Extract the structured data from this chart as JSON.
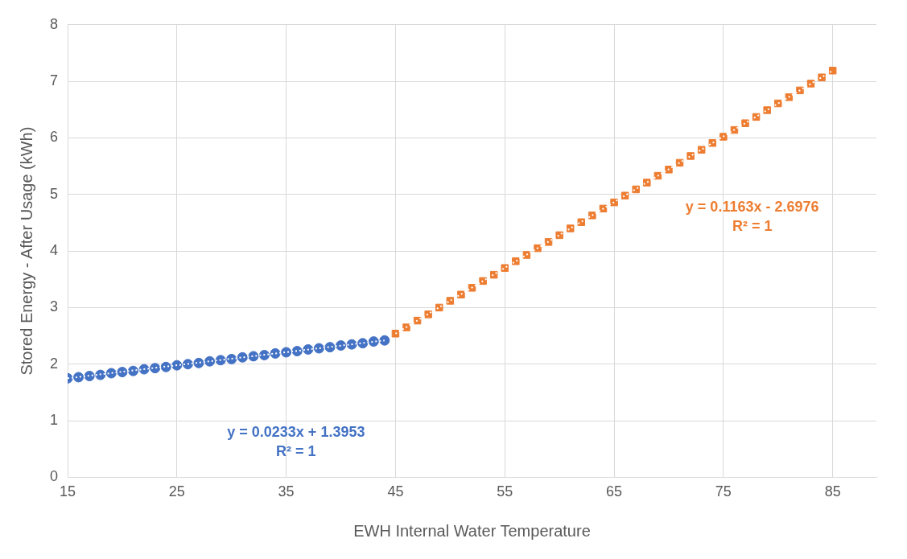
{
  "chart_data": {
    "type": "scatter",
    "xlabel": "EWH Internal Water Temperature",
    "ylabel": "Stored Energy - After Usage (kWh)",
    "xlim": [
      15,
      89
    ],
    "xticks": [
      15,
      25,
      35,
      45,
      55,
      65,
      75,
      85
    ],
    "ylim": [
      0,
      8
    ],
    "yticks": [
      0,
      1,
      2,
      3,
      4,
      5,
      6,
      7,
      8
    ],
    "grid": true,
    "legend": false,
    "series": [
      {
        "type": "scatter",
        "marker": "circle",
        "color": "#4472c4",
        "x": [
          15,
          16,
          17,
          18,
          19,
          20,
          21,
          22,
          23,
          24,
          25,
          26,
          27,
          28,
          29,
          30,
          31,
          32,
          33,
          34,
          35,
          36,
          37,
          38,
          39,
          40,
          41,
          42,
          43,
          44
        ],
        "values": [
          1.75,
          1.77,
          1.79,
          1.81,
          1.84,
          1.86,
          1.88,
          1.91,
          1.93,
          1.95,
          1.98,
          2.0,
          2.02,
          2.05,
          2.07,
          2.09,
          2.12,
          2.14,
          2.16,
          2.19,
          2.21,
          2.23,
          2.26,
          2.28,
          2.3,
          2.33,
          2.35,
          2.37,
          2.4,
          2.42
        ]
      },
      {
        "type": "scatter",
        "marker": "square",
        "color": "#ed7d31",
        "x": [
          45,
          46,
          47,
          48,
          49,
          50,
          51,
          52,
          53,
          54,
          55,
          56,
          57,
          58,
          59,
          60,
          61,
          62,
          63,
          64,
          65,
          66,
          67,
          68,
          69,
          70,
          71,
          72,
          73,
          74,
          75,
          76,
          77,
          78,
          79,
          80,
          81,
          82,
          83,
          84,
          85
        ],
        "values": [
          2.54,
          2.65,
          2.77,
          2.88,
          3.0,
          3.12,
          3.23,
          3.35,
          3.47,
          3.58,
          3.7,
          3.82,
          3.93,
          4.05,
          4.16,
          4.28,
          4.4,
          4.51,
          4.63,
          4.75,
          4.86,
          4.98,
          5.09,
          5.21,
          5.33,
          5.44,
          5.56,
          5.68,
          5.79,
          5.91,
          6.02,
          6.14,
          6.26,
          6.37,
          6.49,
          6.61,
          6.72,
          6.84,
          6.96,
          7.07,
          7.19
        ]
      },
      {
        "type": "line",
        "marker": "none",
        "line_style": "dotted",
        "color": "#ffffff",
        "x": [
          15,
          44
        ],
        "values": [
          1.75,
          2.42
        ]
      },
      {
        "type": "line",
        "marker": "none",
        "line_style": "dotted",
        "color": "#ffffff",
        "x": [
          45,
          85
        ],
        "values": [
          2.54,
          7.19
        ]
      }
    ],
    "annotations": [
      "y = 0.0233x + 1.3953",
      "R² = 1",
      "y = 0.1163x - 2.6976",
      "R² = 1"
    ]
  }
}
